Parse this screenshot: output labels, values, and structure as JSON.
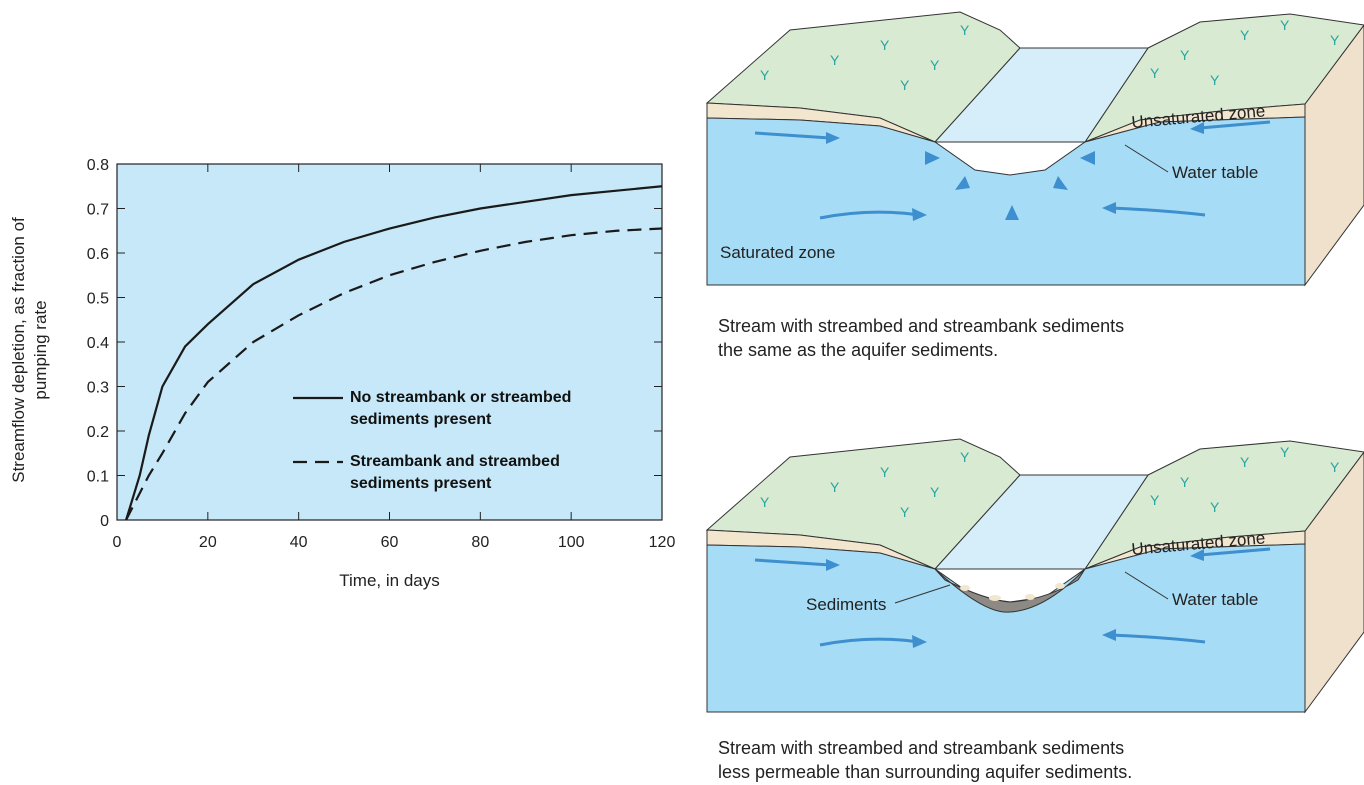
{
  "chart_data": {
    "type": "line",
    "xlabel": "Time, in days",
    "ylabel": "Streamflow depletion, as fraction of pumping rate",
    "x": [
      2,
      5,
      7,
      10,
      15,
      20,
      30,
      40,
      50,
      60,
      70,
      80,
      90,
      100,
      110,
      120
    ],
    "series": [
      {
        "name": "No streambank or streambed sediments present",
        "color": "#1a1a1a",
        "dash": "solid",
        "values": [
          0,
          0.1,
          0.19,
          0.3,
          0.39,
          0.44,
          0.53,
          0.585,
          0.625,
          0.655,
          0.68,
          0.7,
          0.715,
          0.73,
          0.74,
          0.75
        ]
      },
      {
        "name": "Streambank and streambed sediments present",
        "color": "#1a1a1a",
        "dash": "dashed",
        "values": [
          0,
          0.06,
          0.1,
          0.15,
          0.24,
          0.31,
          0.4,
          0.46,
          0.51,
          0.55,
          0.58,
          0.605,
          0.625,
          0.64,
          0.65,
          0.655
        ]
      }
    ],
    "xlim": [
      0,
      120
    ],
    "xticks": [
      0,
      20,
      40,
      60,
      80,
      100,
      120
    ],
    "ylim": [
      0,
      0.8
    ],
    "yticks": [
      0,
      0.1,
      0.2,
      0.3,
      0.4,
      0.5,
      0.6,
      0.7,
      0.8
    ],
    "background": "#c6e8f8"
  },
  "diagrams": [
    {
      "labels": {
        "unsaturated": "Unsaturated zone",
        "water_table": "Water table",
        "saturated": "Saturated zone"
      },
      "caption": [
        "Stream with streambed and streambank sediments",
        "the same as the aquifer sediments."
      ]
    },
    {
      "labels": {
        "unsaturated": "Unsaturated zone",
        "water_table": "Water table",
        "sediments": "Sediments"
      },
      "caption": [
        "Stream with streambed and streambank sediments",
        "less permeable than surrounding aquifer sediments."
      ]
    }
  ]
}
